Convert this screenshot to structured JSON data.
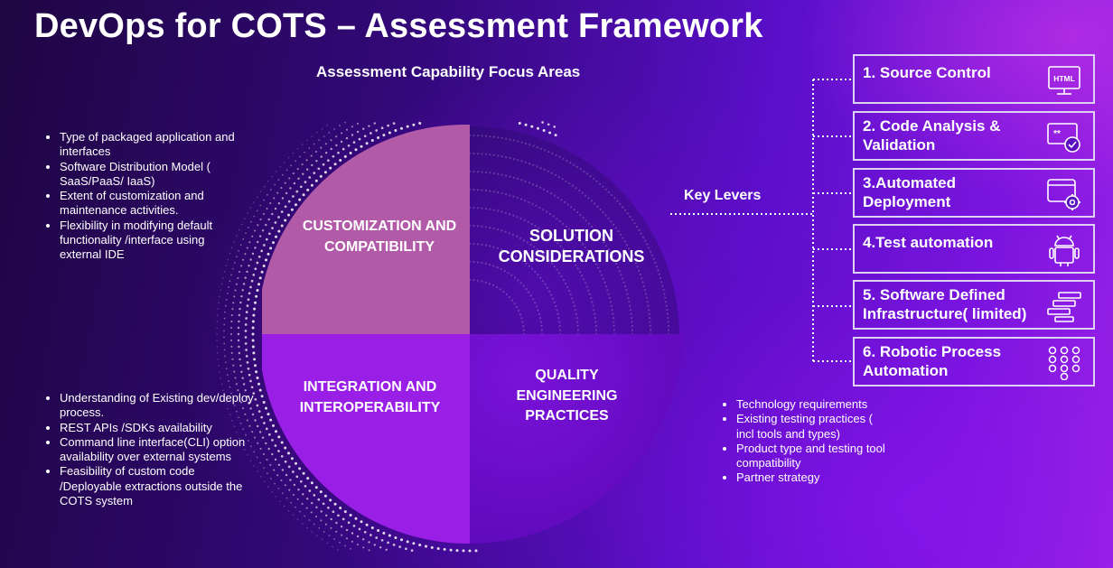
{
  "header": {
    "title": "DevOps for COTS – Assessment Framework",
    "subtitle": "Assessment Capability Focus Areas"
  },
  "quadrants": {
    "customization": "CUSTOMIZATION AND COMPATIBILITY",
    "solution": "SOLUTION CONSIDERATIONS",
    "integration": "INTEGRATION AND INTEROPERABILITY",
    "quality": "QUALITY ENGINEERING PRACTICES"
  },
  "bullets_left_top": [
    "Type of packaged application and interfaces",
    "Software Distribution Model ( SaaS/PaaS/ IaaS)",
    "Extent of customization and maintenance activities.",
    "Flexibility in modifying default functionality /interface using external IDE"
  ],
  "bullets_left_bottom": [
    "Understanding of Existing dev/deploy  process.",
    " REST APIs /SDKs  availability",
    "Command line interface(CLI) option availability over external systems",
    "Feasibility of custom code /Deployable  extractions outside the COTS system"
  ],
  "bullets_right": [
    "Technology requirements",
    "Existing testing practices  ( incl tools and types)",
    "Product type and testing tool compatibility",
    "Partner strategy"
  ],
  "key_levers_label": "Key Levers",
  "levers": [
    {
      "label": "1. Source Control",
      "icon": "html-monitor-icon"
    },
    {
      "label": "2. Code Analysis &\nValidation",
      "icon": "code-check-icon"
    },
    {
      "label": "3.Automated\nDeployment",
      "icon": "window-gear-icon"
    },
    {
      "label": "4.Test automation",
      "icon": "android-robot-icon"
    },
    {
      "label": "5. Software Defined\nInfrastructure( limited)",
      "icon": "stacked-bars-icon"
    },
    {
      "label": "6.  Robotic Process\nAutomation",
      "icon": "dot-grid-icon"
    }
  ],
  "colors": {
    "customization": "#b05aa8",
    "solution": "#3a0a8a",
    "integration": "#9a1fe6",
    "quality": "#6a0bc8",
    "lever_border": "#ddd2f2"
  }
}
